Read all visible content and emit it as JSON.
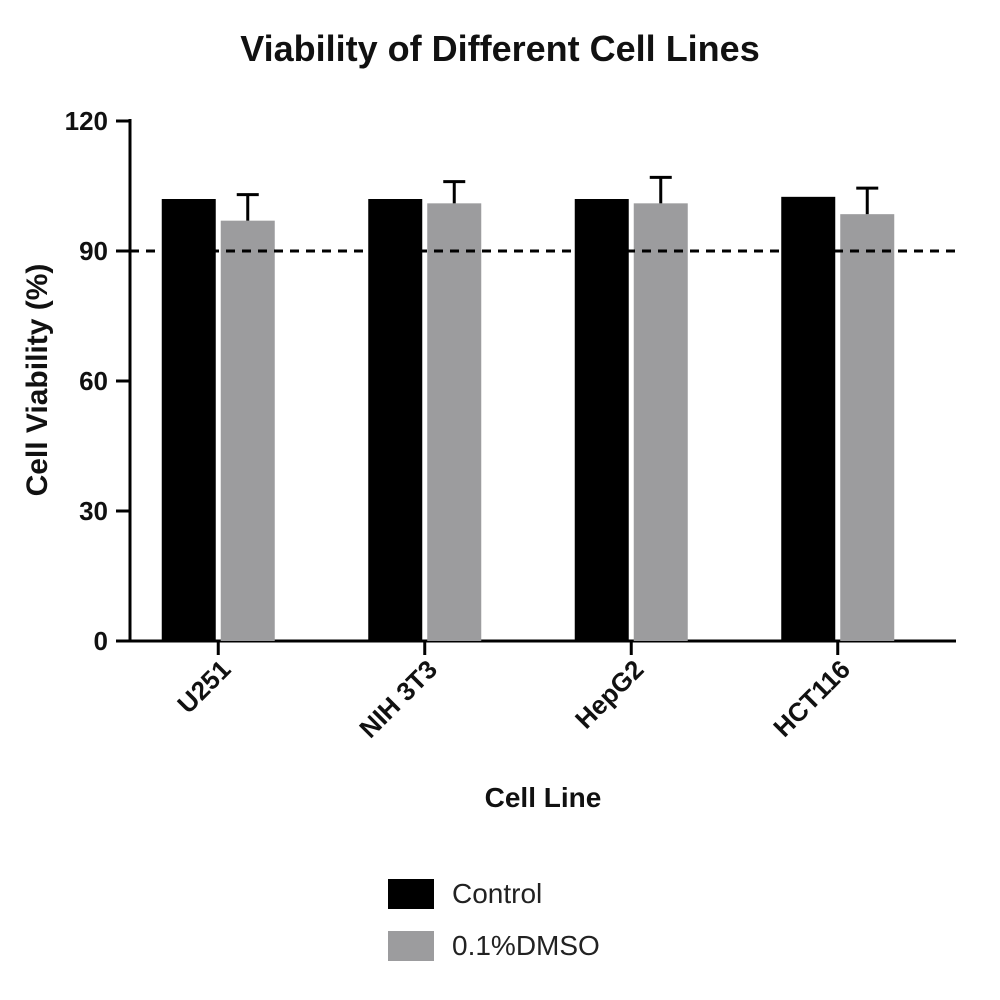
{
  "chart_data": {
    "type": "bar",
    "title": "Viability of Different Cell Lines",
    "xlabel": "Cell Line",
    "ylabel": "Cell Viability (%)",
    "ylim": [
      0,
      120
    ],
    "yticks": [
      0,
      30,
      60,
      90,
      120
    ],
    "categories": [
      "U251",
      "NIH 3T3",
      "HepG2",
      "HCT116"
    ],
    "series": [
      {
        "name": "Control",
        "color": "#000000",
        "values": [
          102,
          102,
          102,
          102.5
        ],
        "errors": [
          0,
          0,
          0,
          0
        ]
      },
      {
        "name": "0.1%DMSO",
        "color": "#9c9c9e",
        "values": [
          97,
          101,
          101,
          98.5
        ],
        "errors": [
          6,
          5,
          6,
          6
        ]
      }
    ],
    "reference_line": {
      "y": 90,
      "style": "dashed"
    },
    "grid": false,
    "legend_position": "bottom"
  }
}
